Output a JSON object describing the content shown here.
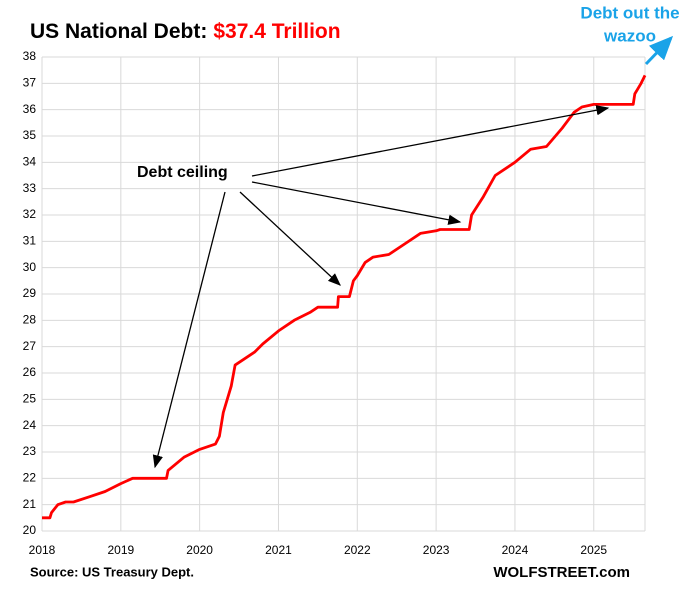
{
  "chart_data": {
    "type": "line",
    "title": "US National Debt:",
    "title_value": "$37.4 Trillion",
    "annotations": [
      "Debt ceiling",
      "Debt out the",
      "wazoo"
    ],
    "source": "Source: US Treasury Dept.",
    "credit": "WOLFSTREET.com",
    "x": [
      2018.0,
      2018.1,
      2018.12,
      2018.2,
      2018.3,
      2018.4,
      2018.6,
      2018.8,
      2019.0,
      2019.15,
      2019.58,
      2019.6,
      2019.8,
      2020.0,
      2020.2,
      2020.25,
      2020.3,
      2020.4,
      2020.45,
      2020.55,
      2020.7,
      2020.8,
      2021.0,
      2021.2,
      2021.4,
      2021.5,
      2021.75,
      2021.76,
      2021.9,
      2021.95,
      2022.0,
      2022.1,
      2022.2,
      2022.4,
      2022.6,
      2022.8,
      2023.0,
      2023.05,
      2023.42,
      2023.45,
      2023.6,
      2023.75,
      2023.9,
      2024.0,
      2024.2,
      2024.4,
      2024.6,
      2024.75,
      2024.85,
      2025.0,
      2025.5,
      2025.52,
      2025.6,
      2025.65
    ],
    "series": [
      {
        "name": "US National Debt",
        "color": "#ff0000",
        "values": [
          20.5,
          20.5,
          20.7,
          21.0,
          21.1,
          21.1,
          21.3,
          21.5,
          21.8,
          22.0,
          22.0,
          22.3,
          22.8,
          23.1,
          23.3,
          23.6,
          24.5,
          25.5,
          26.3,
          26.5,
          26.8,
          27.1,
          27.6,
          28.0,
          28.3,
          28.5,
          28.5,
          28.9,
          28.9,
          29.5,
          29.7,
          30.2,
          30.4,
          30.5,
          30.9,
          31.3,
          31.4,
          31.45,
          31.45,
          32.0,
          32.7,
          33.5,
          33.8,
          34.0,
          34.5,
          34.6,
          35.3,
          35.9,
          36.1,
          36.2,
          36.2,
          36.6,
          37.0,
          37.3
        ]
      }
    ],
    "xlim": [
      2018,
      2025.65
    ],
    "xticks": [
      2018,
      2019,
      2020,
      2021,
      2022,
      2023,
      2024,
      2025
    ],
    "ylim": [
      20,
      38
    ],
    "yticks": [
      20,
      21,
      22,
      23,
      24,
      25,
      26,
      27,
      28,
      29,
      30,
      31,
      32,
      33,
      34,
      35,
      36,
      37,
      38
    ],
    "grid": true
  }
}
